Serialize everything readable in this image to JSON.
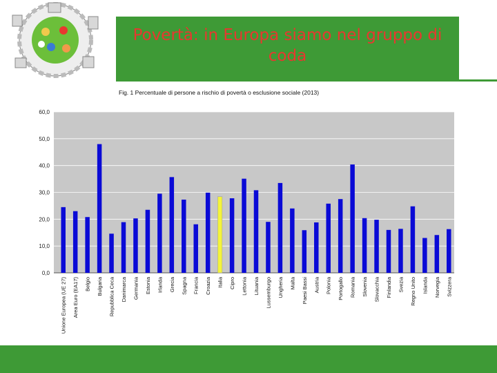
{
  "slide": {
    "title": "Povertà: in Europa siamo nel gruppo di coda"
  },
  "colors": {
    "band": "#3e9a36",
    "title": "#e8372f",
    "bar": "#0a0ad6",
    "highlight": "#f4f43a",
    "plot_bg": "#c8c8c8"
  },
  "logo": {
    "icon": "community-logo-icon"
  },
  "chart_data": {
    "type": "bar",
    "title": "Fig. 1 Percentuale di persone a rischio di povertà o esclusione sociale (2013)",
    "xlabel": "",
    "ylabel": "",
    "ylim": [
      0,
      60
    ],
    "yticks": [
      "0,0",
      "10,0",
      "20,0",
      "30,0",
      "40,0",
      "50,0",
      "60,0"
    ],
    "grid": true,
    "legend": "none",
    "highlight_category": "Italia",
    "categories": [
      "Unione Europea (UE 27)",
      "Area Euro (EA17)",
      "Belgio",
      "Bulgaria",
      "Repubblica Ceca",
      "Danimarca",
      "Germania",
      "Estonia",
      "Irlanda",
      "Grecia",
      "Spagna",
      "Francia",
      "Croazia",
      "Italia",
      "Cipro",
      "Lettonia",
      "Lituania",
      "Lussemburgo",
      "Ungheria",
      "Malta",
      "Paesi Bassi",
      "Austria",
      "Polonia",
      "Portogallo",
      "Romania",
      "Slovenia",
      "Slovacchia",
      "Finlandia",
      "Svezia",
      "Regno Unito",
      "Islanda",
      "Norvegia",
      "Svizzera"
    ],
    "values": [
      24.5,
      23.0,
      20.8,
      48.0,
      14.6,
      18.9,
      20.3,
      23.5,
      29.5,
      35.7,
      27.3,
      18.1,
      29.9,
      28.4,
      27.8,
      35.1,
      30.8,
      19.0,
      33.5,
      24.0,
      15.9,
      18.8,
      25.8,
      27.5,
      40.4,
      20.4,
      19.8,
      16.0,
      16.4,
      24.8,
      13.0,
      14.1,
      16.3
    ]
  }
}
